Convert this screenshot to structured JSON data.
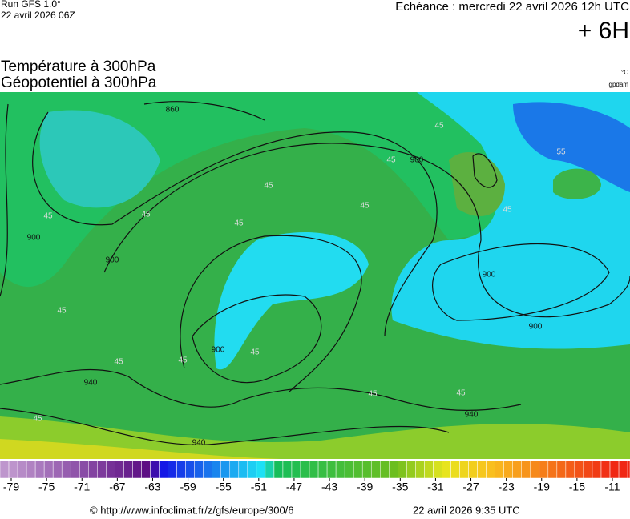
{
  "header": {
    "run": "Run GFS 1.0°",
    "run_date": "22 avril 2026 06Z",
    "echeance": "Echéance : mercredi 22 avril 2026 12h UTC",
    "lead": "+ 6H",
    "title1": "Température à 300hPa",
    "title2": "Géopotentiel à 300hPa",
    "unit1": "°C",
    "unit2": "gpdam"
  },
  "geopotential_labels": [
    860,
    900,
    900,
    900,
    900,
    900,
    900,
    940,
    940,
    940
  ],
  "temperature_labels": [
    45,
    45,
    45,
    45,
    45,
    45,
    45,
    45,
    45,
    45,
    45,
    45,
    45,
    45,
    45,
    55
  ],
  "colorbar": {
    "ticks": [
      -79,
      -75,
      -71,
      -67,
      -63,
      -59,
      -55,
      -51,
      -47,
      -43,
      -39,
      -35,
      -31,
      -27,
      -23,
      -19,
      -15,
      -11
    ]
  },
  "footer": {
    "url": "© http://www.infoclimat.fr/z/gfs/europe/300/6",
    "date": "22 avril 2026  9:35 UTC"
  }
}
